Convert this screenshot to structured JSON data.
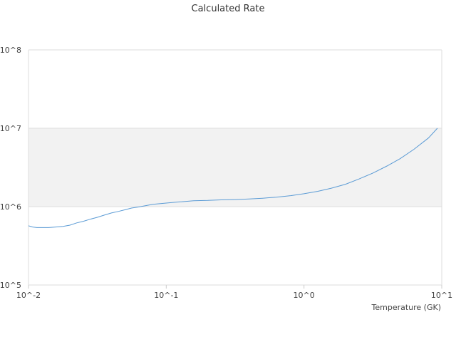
{
  "chart_data": {
    "type": "line",
    "title": "Calculated Rate",
    "xlabel": "Temperature (GK)",
    "ylabel": "",
    "xscale": "log",
    "yscale": "log",
    "xlim": [
      0.01,
      10
    ],
    "ylim": [
      100000,
      100000000
    ],
    "x_ticks": [
      "10^-2",
      "10^-1",
      "10^0",
      "10^1"
    ],
    "y_ticks": [
      "10^5",
      "10^6",
      "10^7",
      "10^8"
    ],
    "shaded_band": [
      1000000,
      10000000
    ],
    "grid": true,
    "legend": "none",
    "line_color": "#5b9bd5",
    "series": [
      {
        "x": [
          0.01,
          0.0107,
          0.0115,
          0.0127,
          0.014,
          0.0158,
          0.0178,
          0.02,
          0.0224,
          0.025,
          0.028,
          0.0316,
          0.0355,
          0.04,
          0.045,
          0.05,
          0.056,
          0.063,
          0.071,
          0.08,
          0.1,
          0.126,
          0.158,
          0.2,
          0.25,
          0.316,
          0.4,
          0.5,
          0.63,
          0.8,
          1.0,
          1.26,
          1.58,
          2.0,
          2.5,
          3.16,
          4.0,
          5.0,
          6.3,
          8.0,
          9.3
        ],
        "y": [
          570000,
          550000,
          540000,
          540000,
          540000,
          550000,
          560000,
          580000,
          620000,
          650000,
          690000,
          730000,
          780000,
          830000,
          870000,
          910000,
          960000,
          990000,
          1030000,
          1070000,
          1110000,
          1150000,
          1190000,
          1200000,
          1220000,
          1230000,
          1250000,
          1280000,
          1320000,
          1380000,
          1460000,
          1570000,
          1720000,
          1930000,
          2250000,
          2680000,
          3300000,
          4100000,
          5400000,
          7500000,
          10000000
        ]
      }
    ]
  }
}
